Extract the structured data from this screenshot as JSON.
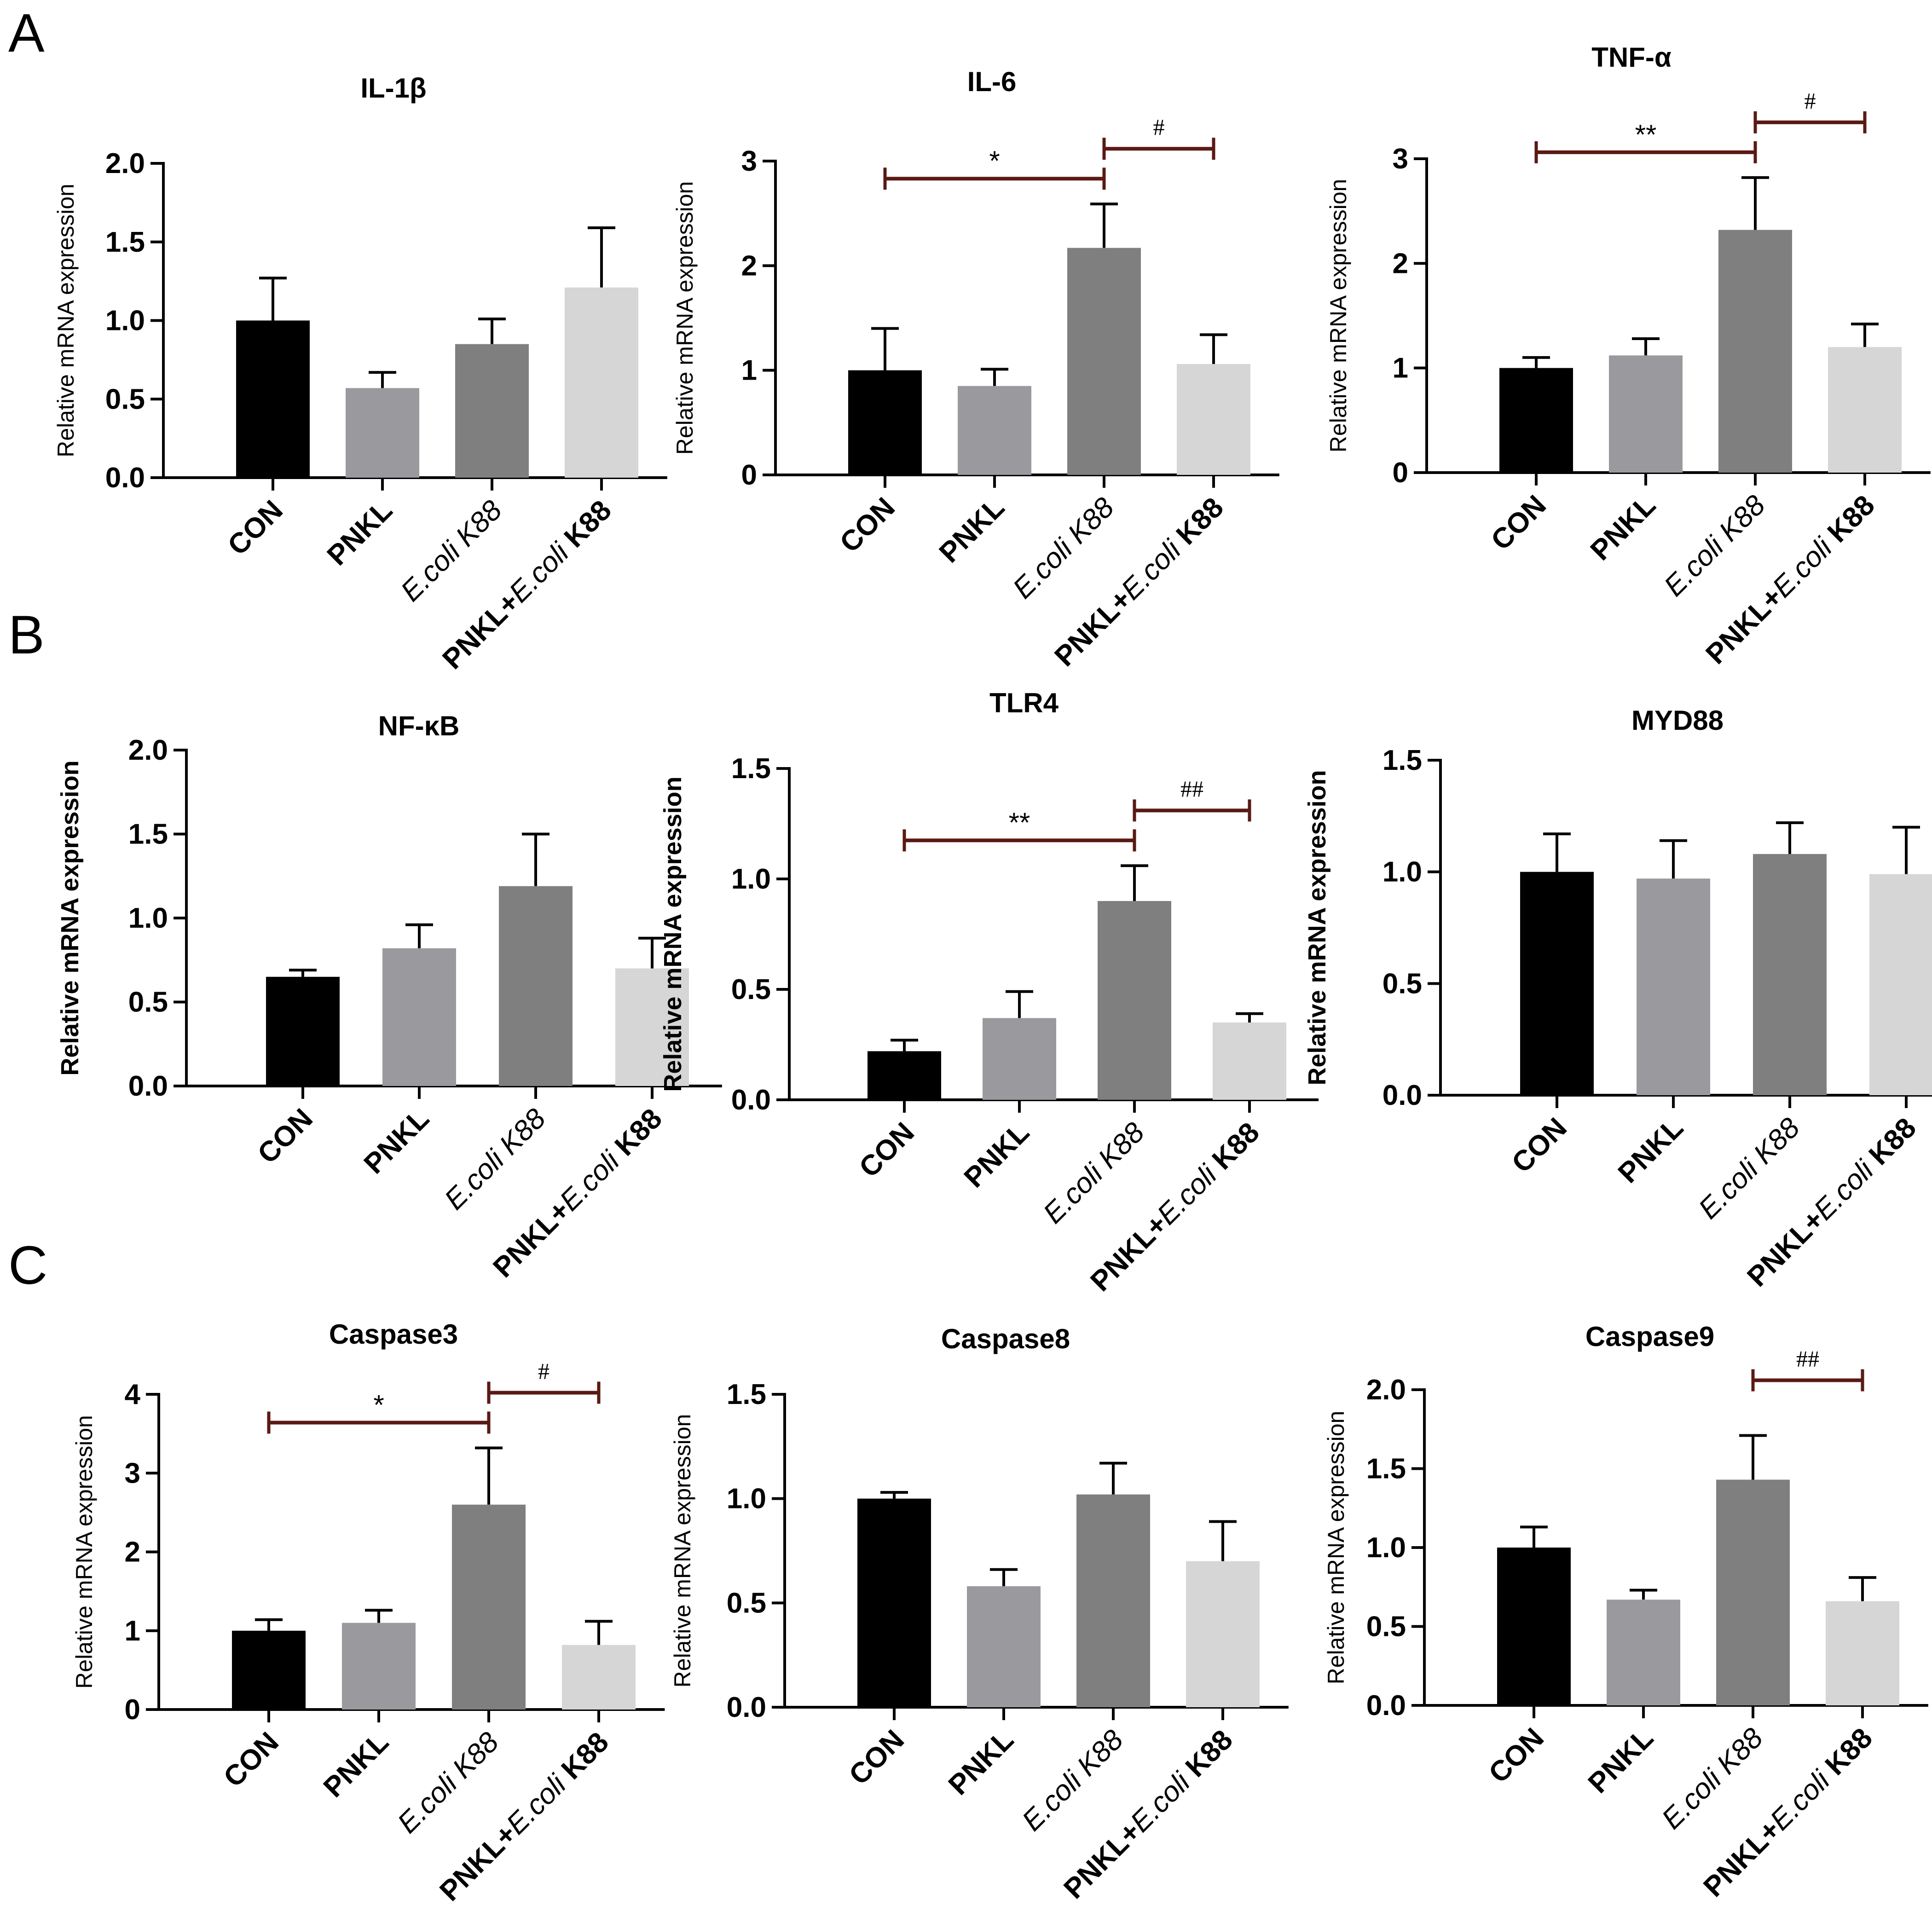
{
  "panel_letters": [
    "A",
    "B",
    "C"
  ],
  "colors": {
    "CON": "#000000",
    "PNKL": "#9a9a9e",
    "E.coli K88": "#7f7f7f",
    "PNKL+E.coli K88": "#d6d6d6",
    "bracket": "#5a1a14",
    "axis": "#000000"
  },
  "chart_data": [
    {
      "type": "bar",
      "panel": "A",
      "title": "IL-1β",
      "ylabel": "Relative mRNA expression",
      "categories": [
        "CON",
        "PNKL",
        "E.coli K88",
        "PNKL+E.coli K88"
      ],
      "values": [
        1.0,
        0.57,
        0.85,
        1.21
      ],
      "errors": [
        0.27,
        0.1,
        0.16,
        0.38
      ],
      "ylim": [
        0,
        2.0
      ],
      "yticks": [
        "0.0",
        "0.5",
        "1.0",
        "1.5",
        "2.0"
      ],
      "significance": []
    },
    {
      "type": "bar",
      "panel": "A",
      "title": "IL-6",
      "ylabel": "Relative mRNA expression",
      "categories": [
        "CON",
        "PNKL",
        "E.coli K88",
        "PNKL+E.coli K88"
      ],
      "values": [
        1.0,
        0.85,
        2.17,
        1.06
      ],
      "errors": [
        0.4,
        0.16,
        0.42,
        0.28
      ],
      "ylim": [
        0,
        3
      ],
      "yticks": [
        "0",
        "1",
        "2",
        "3"
      ],
      "significance": [
        {
          "from": 0,
          "to": 2,
          "label": "*"
        },
        {
          "from": 2,
          "to": 3,
          "label": "#"
        }
      ]
    },
    {
      "type": "bar",
      "panel": "A",
      "title": "TNF-α",
      "ylabel": "Relative mRNA expression",
      "categories": [
        "CON",
        "PNKL",
        "E.coli K88",
        "PNKL+E.coli K88"
      ],
      "values": [
        1.0,
        1.12,
        2.32,
        1.2
      ],
      "errors": [
        0.1,
        0.16,
        0.5,
        0.22
      ],
      "ylim": [
        0,
        3
      ],
      "yticks": [
        "0",
        "1",
        "2",
        "3"
      ],
      "significance": [
        {
          "from": 0,
          "to": 2,
          "label": "**"
        },
        {
          "from": 2,
          "to": 3,
          "label": "#"
        }
      ]
    },
    {
      "type": "bar",
      "panel": "B",
      "title": "NF-κB",
      "ylabel": "Relative mRNA expression",
      "categories": [
        "CON",
        "PNKL",
        "E.coli K88",
        "PNKL+E.coli K88"
      ],
      "values": [
        0.65,
        0.82,
        1.19,
        0.7
      ],
      "errors": [
        0.04,
        0.14,
        0.31,
        0.18
      ],
      "ylim": [
        0,
        2.0
      ],
      "yticks": [
        "0.0",
        "0.5",
        "1.0",
        "1.5",
        "2.0"
      ],
      "significance": []
    },
    {
      "type": "bar",
      "panel": "B",
      "title": "TLR4",
      "ylabel": "Relative mRNA expression",
      "categories": [
        "CON",
        "PNKL",
        "E.coli K88",
        "PNKL+E.coli K88"
      ],
      "values": [
        0.22,
        0.37,
        0.9,
        0.35
      ],
      "errors": [
        0.05,
        0.12,
        0.16,
        0.04
      ],
      "ylim": [
        0,
        1.5
      ],
      "yticks": [
        "0.0",
        "0.5",
        "1.0",
        "1.5"
      ],
      "significance": [
        {
          "from": 0,
          "to": 2,
          "label": "**"
        },
        {
          "from": 2,
          "to": 3,
          "label": "##"
        }
      ]
    },
    {
      "type": "bar",
      "panel": "B",
      "title": "MYD88",
      "ylabel": "Relative mRNA expression",
      "categories": [
        "CON",
        "PNKL",
        "E.coli K88",
        "PNKL+E.coli K88"
      ],
      "values": [
        1.0,
        0.97,
        1.08,
        0.99
      ],
      "errors": [
        0.17,
        0.17,
        0.14,
        0.21
      ],
      "ylim": [
        0,
        1.5
      ],
      "yticks": [
        "0.0",
        "0.5",
        "1.0",
        "1.5"
      ],
      "significance": []
    },
    {
      "type": "bar",
      "panel": "C",
      "title": "Caspase3",
      "ylabel": "Relative mRNA expression",
      "categories": [
        "CON",
        "PNKL",
        "E.coli K88",
        "PNKL+E.coli K88"
      ],
      "values": [
        1.0,
        1.1,
        2.6,
        0.82
      ],
      "errors": [
        0.14,
        0.16,
        0.72,
        0.3
      ],
      "ylim": [
        0,
        4
      ],
      "yticks": [
        "0",
        "1",
        "2",
        "3",
        "4"
      ],
      "significance": [
        {
          "from": 0,
          "to": 2,
          "label": "*"
        },
        {
          "from": 2,
          "to": 3,
          "label": "#"
        }
      ]
    },
    {
      "type": "bar",
      "panel": "C",
      "title": "Caspase8",
      "ylabel": "Relative mRNA expression",
      "categories": [
        "CON",
        "PNKL",
        "E.coli K88",
        "PNKL+E.coli K88"
      ],
      "values": [
        1.0,
        0.58,
        1.02,
        0.7
      ],
      "errors": [
        0.03,
        0.08,
        0.15,
        0.19
      ],
      "ylim": [
        0,
        1.5
      ],
      "yticks": [
        "0.0",
        "0.5",
        "1.0",
        "1.5"
      ],
      "significance": []
    },
    {
      "type": "bar",
      "panel": "C",
      "title": "Caspase9",
      "ylabel": "Relative mRNA expression",
      "categories": [
        "CON",
        "PNKL",
        "E.coli K88",
        "PNKL+E.coli K88"
      ],
      "values": [
        1.0,
        0.67,
        1.43,
        0.66
      ],
      "errors": [
        0.13,
        0.06,
        0.28,
        0.15
      ],
      "ylim": [
        0,
        2.0
      ],
      "yticks": [
        "0.0",
        "0.5",
        "1.0",
        "1.5",
        "2.0"
      ],
      "significance": [
        {
          "from": 2,
          "to": 3,
          "label": "##"
        }
      ]
    }
  ]
}
